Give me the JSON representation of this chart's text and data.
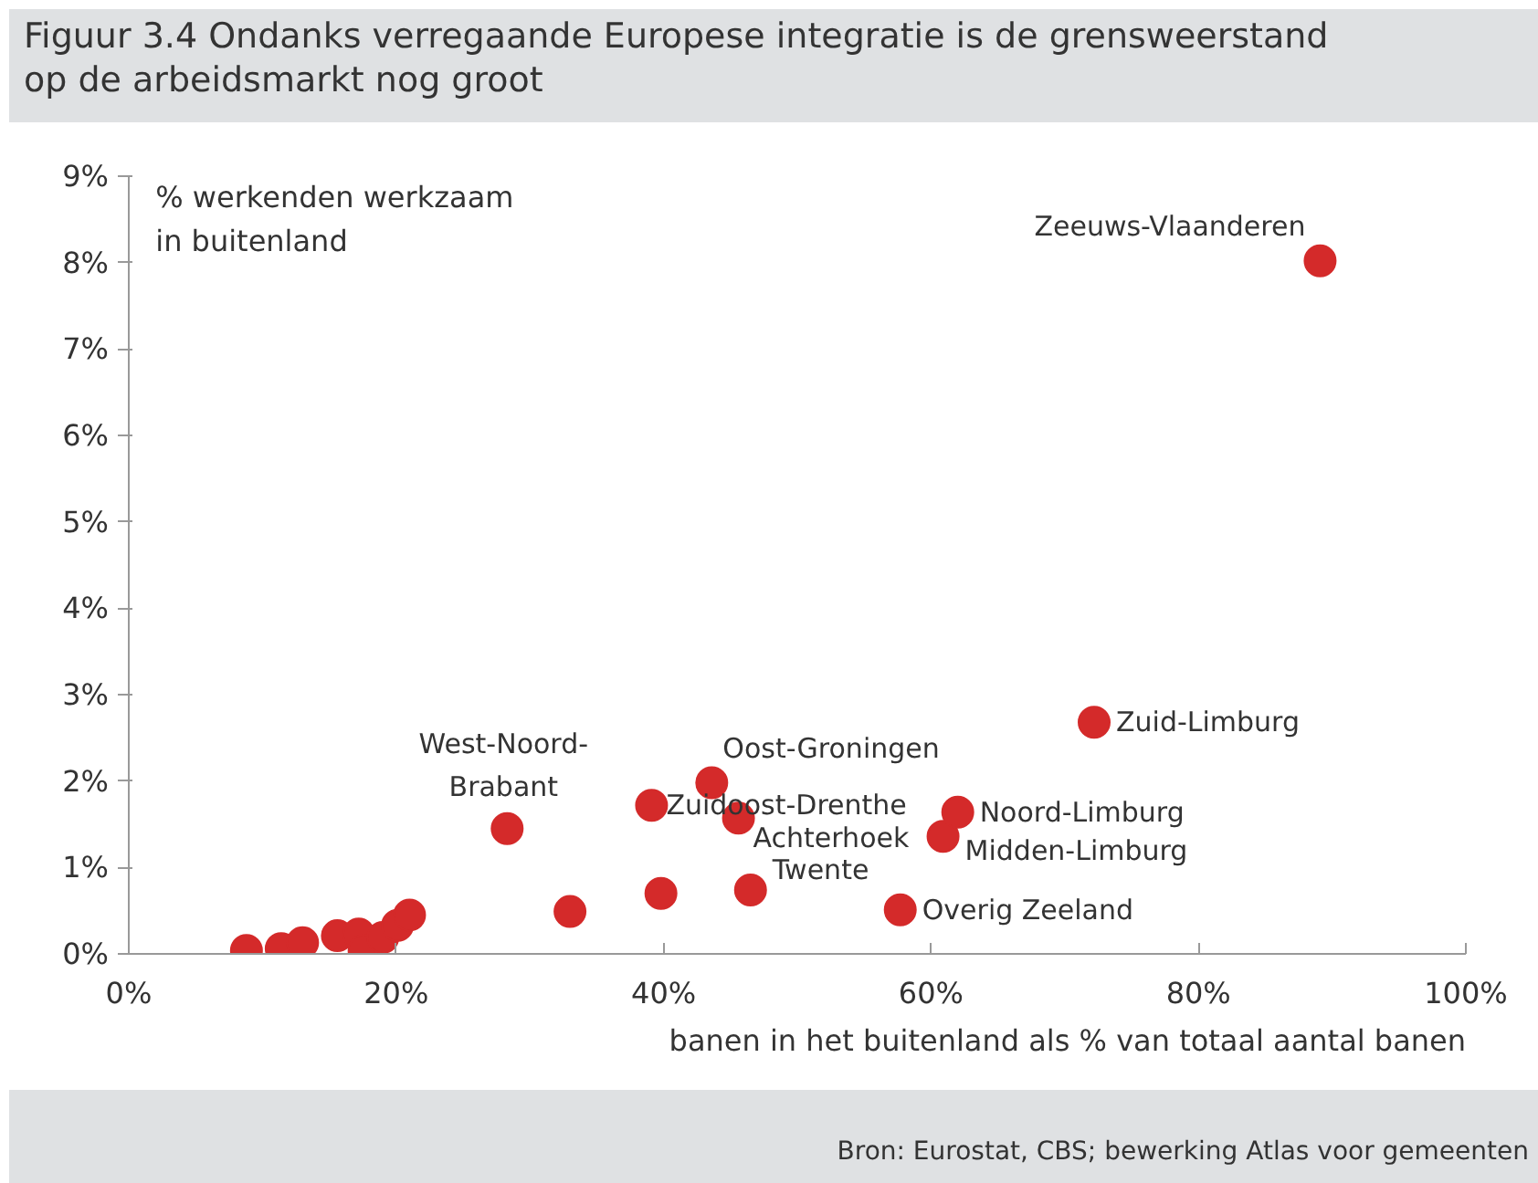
{
  "chart_data": {
    "type": "scatter",
    "title": "Figuur 3.4  Ondanks verregaande Europese integratie is de grensweerstand\nop de arbeidsmarkt nog groot",
    "xlabel": "banen in het buitenland als % van totaal aantal banen",
    "ylabel": "% werkenden werkzaam\nin buitenland",
    "marker": "circle",
    "series": [
      {
        "color": "#d42a2a",
        "x": [
          8.8,
          11.4,
          13.0,
          15.6,
          17.2,
          17.6,
          19.0,
          20.1,
          21.0,
          33.0,
          39.8,
          28.3,
          39.1,
          43.6,
          45.6,
          46.5,
          57.7,
          60.9,
          62.0,
          72.2,
          89.1
        ],
        "values": [
          0.04,
          0.06,
          0.13,
          0.21,
          0.23,
          0.04,
          0.19,
          0.33,
          0.45,
          0.49,
          0.7,
          1.45,
          1.72,
          1.98,
          1.57,
          0.74,
          0.51,
          1.36,
          1.64,
          2.68,
          8.02
        ]
      }
    ],
    "xlim": [
      0,
      100
    ],
    "ylim": [
      0,
      9
    ],
    "xticks": [
      {
        "value": 0,
        "label": "0%"
      },
      {
        "value": 20,
        "label": "20%"
      },
      {
        "value": 40,
        "label": "40%"
      },
      {
        "value": 60,
        "label": "60%"
      },
      {
        "value": 80,
        "label": "80%"
      },
      {
        "value": 100,
        "label": "100%"
      }
    ],
    "yticks": [
      {
        "value": 0,
        "label": "0%"
      },
      {
        "value": 1,
        "label": "1%"
      },
      {
        "value": 2,
        "label": "2%"
      },
      {
        "value": 3,
        "label": "3%"
      },
      {
        "value": 4,
        "label": "4%"
      },
      {
        "value": 5,
        "label": "5%"
      },
      {
        "value": 6,
        "label": "6%"
      },
      {
        "value": 7,
        "label": "7%"
      },
      {
        "value": 8,
        "label": "8%"
      },
      {
        "value": 9,
        "label": "9%"
      }
    ],
    "grid": false,
    "annotations": [
      {
        "text": "Zeeuws-Vlaanderen",
        "x": 89.1,
        "y": 8.02
      },
      {
        "text": "Zuid-Limburg",
        "x": 72.2,
        "y": 2.68
      },
      {
        "text": "West-Noord-\nBrabant",
        "x": 28.3,
        "y": 1.45
      },
      {
        "text": "Zuidoost-Drenthe",
        "x": 39.1,
        "y": 1.72
      },
      {
        "text": "Oost-Groningen",
        "x": 43.6,
        "y": 1.98
      },
      {
        "text": "Achterhoek",
        "x": 45.6,
        "y": 1.57
      },
      {
        "text": "Noord-Limburg",
        "x": 62.0,
        "y": 1.64
      },
      {
        "text": "Midden-Limburg",
        "x": 60.9,
        "y": 1.36
      },
      {
        "text": "Twente",
        "x": 46.5,
        "y": 0.74
      },
      {
        "text": "Overig Zeeland",
        "x": 57.7,
        "y": 0.51
      },
      "Bron: Eurostat, CBS; bewerking Atlas voor gemeenten"
    ]
  }
}
